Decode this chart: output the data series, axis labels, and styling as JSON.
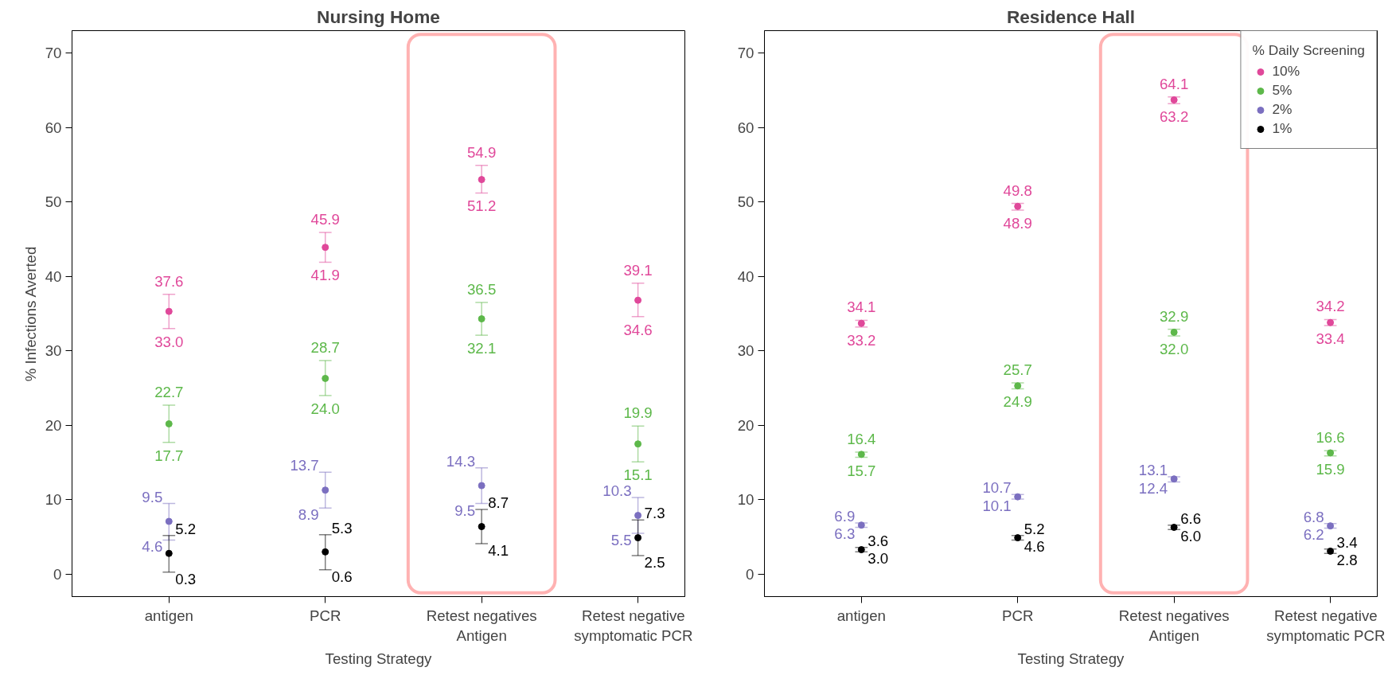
{
  "chart_data": [
    {
      "type": "scatter",
      "title": "Nursing Home",
      "xlabel": "Testing Strategy",
      "ylabel": "% Infections Averted",
      "categories": [
        "antigen",
        "PCR",
        "Retest negatives\nAntigen",
        "Retest negative\nsymptomatic PCR"
      ],
      "ylim": [
        -3,
        73
      ],
      "yticks": [
        0,
        10,
        20,
        30,
        40,
        50,
        60,
        70
      ],
      "grid": false,
      "legend": false,
      "marker": "circle",
      "series": [
        {
          "color": "#e0489a",
          "values": [
            35.3,
            43.9,
            53.0,
            36.8
          ],
          "errors": [
            [
              33.0,
              37.6
            ],
            [
              41.9,
              45.9
            ],
            [
              51.2,
              54.9
            ],
            [
              34.6,
              39.1
            ]
          ]
        },
        {
          "color": "#5db84a",
          "values": [
            20.2,
            26.3,
            34.3,
            17.5
          ],
          "errors": [
            [
              17.7,
              22.7
            ],
            [
              24.0,
              28.7
            ],
            [
              32.1,
              36.5
            ],
            [
              15.1,
              19.9
            ]
          ]
        },
        {
          "color": "#7b6fc0",
          "values": [
            7.1,
            11.3,
            11.9,
            7.9
          ],
          "errors": [
            [
              4.6,
              9.5
            ],
            [
              8.9,
              13.7
            ],
            [
              9.5,
              14.3
            ],
            [
              5.5,
              10.3
            ]
          ]
        },
        {
          "color": "#000000",
          "values": [
            2.8,
            3.0,
            6.4,
            4.9
          ],
          "errors": [
            [
              0.3,
              5.2
            ],
            [
              0.6,
              5.3
            ],
            [
              4.1,
              8.7
            ],
            [
              2.5,
              7.3
            ]
          ]
        }
      ],
      "annotations": [
        {
          "text": "37.6",
          "x": "antigen",
          "y": 37.6
        },
        {
          "text": "33.0",
          "x": "antigen",
          "y": 33.0
        },
        {
          "text": "45.9",
          "x": "PCR",
          "y": 45.9
        },
        {
          "text": "41.9",
          "x": "PCR",
          "y": 41.9
        },
        {
          "text": "54.9",
          "x": "Retest negatives\nAntigen",
          "y": 54.9
        },
        {
          "text": "51.2",
          "x": "Retest negatives\nAntigen",
          "y": 51.2
        },
        {
          "text": "39.1",
          "x": "Retest negative\nsymptomatic PCR",
          "y": 39.1
        },
        {
          "text": "34.6",
          "x": "Retest negative\nsymptomatic PCR",
          "y": 34.6
        },
        {
          "text": "22.7",
          "x": "antigen",
          "y": 22.7
        },
        {
          "text": "17.7",
          "x": "antigen",
          "y": 17.7
        },
        {
          "text": "28.7",
          "x": "PCR",
          "y": 28.7
        },
        {
          "text": "24.0",
          "x": "PCR",
          "y": 24.0
        },
        {
          "text": "36.5",
          "x": "Retest negatives\nAntigen",
          "y": 36.5
        },
        {
          "text": "32.1",
          "x": "Retest negatives\nAntigen",
          "y": 32.1
        },
        {
          "text": "19.9",
          "x": "Retest negative\nsymptomatic PCR",
          "y": 19.9
        },
        {
          "text": "15.1",
          "x": "Retest negative\nsymptomatic PCR",
          "y": 15.1
        },
        {
          "text": "9.5",
          "x": "antigen",
          "y": 9.5
        },
        {
          "text": "4.6",
          "x": "antigen",
          "y": 4.6
        },
        {
          "text": "13.7",
          "x": "PCR",
          "y": 13.7
        },
        {
          "text": "8.9",
          "x": "PCR",
          "y": 8.9
        },
        {
          "text": "14.3",
          "x": "Retest negatives\nAntigen",
          "y": 14.3
        },
        {
          "text": "9.5",
          "x": "Retest negatives\nAntigen",
          "y": 9.5
        },
        {
          "text": "10.3",
          "x": "Retest negative\nsymptomatic PCR",
          "y": 10.3
        },
        {
          "text": "5.5",
          "x": "Retest negative\nsymptomatic PCR",
          "y": 5.5
        },
        {
          "text": "5.2",
          "x": "antigen",
          "y": 5.2
        },
        {
          "text": "0.3",
          "x": "antigen",
          "y": 0.3
        },
        {
          "text": "5.3",
          "x": "PCR",
          "y": 5.3
        },
        {
          "text": "0.6",
          "x": "PCR",
          "y": 0.6
        },
        {
          "text": "8.7",
          "x": "Retest negatives\nAntigen",
          "y": 8.7
        },
        {
          "text": "4.1",
          "x": "Retest negatives\nAntigen",
          "y": 4.1
        },
        {
          "text": "7.3",
          "x": "Retest negative\nsymptomatic PCR",
          "y": 7.3
        },
        {
          "text": "2.5",
          "x": "Retest negative\nsymptomatic PCR",
          "y": 2.5
        }
      ]
    },
    {
      "type": "scatter",
      "title": "Residence Hall",
      "xlabel": "Testing Strategy",
      "legend_title": "% Daily Screening",
      "categories": [
        "antigen",
        "PCR",
        "Retest negatives\nAntigen",
        "Retest negative\nsymptomatic PCR"
      ],
      "ylim": [
        -3,
        73
      ],
      "yticks": [
        0,
        10,
        20,
        30,
        40,
        50,
        60,
        70
      ],
      "grid": false,
      "legend": "top right",
      "marker": "circle",
      "series": [
        {
          "name": "10%",
          "color": "#e0489a",
          "values": [
            33.7,
            49.4,
            63.7,
            33.8
          ],
          "errors": [
            [
              33.2,
              34.1
            ],
            [
              48.9,
              49.8
            ],
            [
              63.2,
              64.1
            ],
            [
              33.4,
              34.2
            ]
          ]
        },
        {
          "name": "5%",
          "color": "#5db84a",
          "values": [
            16.1,
            25.3,
            32.5,
            16.3
          ],
          "errors": [
            [
              15.7,
              16.4
            ],
            [
              24.9,
              25.7
            ],
            [
              32.0,
              32.9
            ],
            [
              15.9,
              16.6
            ]
          ]
        },
        {
          "name": "2%",
          "color": "#7b6fc0",
          "values": [
            6.6,
            10.4,
            12.8,
            6.5
          ],
          "errors": [
            [
              6.3,
              6.9
            ],
            [
              10.1,
              10.7
            ],
            [
              12.4,
              13.1
            ],
            [
              6.2,
              6.8
            ]
          ]
        },
        {
          "name": "1%",
          "color": "#000000",
          "values": [
            3.3,
            4.9,
            6.3,
            3.1
          ],
          "errors": [
            [
              3.0,
              3.6
            ],
            [
              4.6,
              5.2
            ],
            [
              6.0,
              6.6
            ],
            [
              2.8,
              3.4
            ]
          ]
        }
      ],
      "annotations": [
        {
          "text": "34.1",
          "x": "antigen",
          "y": 34.1
        },
        {
          "text": "33.2",
          "x": "antigen",
          "y": 33.2
        },
        {
          "text": "49.8",
          "x": "PCR",
          "y": 49.8
        },
        {
          "text": "48.9",
          "x": "PCR",
          "y": 48.9
        },
        {
          "text": "64.1",
          "x": "Retest negatives\nAntigen",
          "y": 64.1
        },
        {
          "text": "63.2",
          "x": "Retest negatives\nAntigen",
          "y": 63.2
        },
        {
          "text": "34.2",
          "x": "Retest negative\nsymptomatic PCR",
          "y": 34.2
        },
        {
          "text": "33.4",
          "x": "Retest negative\nsymptomatic PCR",
          "y": 33.4
        },
        {
          "text": "16.4",
          "x": "antigen",
          "y": 16.4
        },
        {
          "text": "15.7",
          "x": "antigen",
          "y": 15.7
        },
        {
          "text": "25.7",
          "x": "PCR",
          "y": 25.7
        },
        {
          "text": "24.9",
          "x": "PCR",
          "y": 24.9
        },
        {
          "text": "32.9",
          "x": "Retest negatives\nAntigen",
          "y": 32.9
        },
        {
          "text": "32.0",
          "x": "Retest negatives\nAntigen",
          "y": 32.0
        },
        {
          "text": "16.6",
          "x": "Retest negative\nsymptomatic PCR",
          "y": 16.6
        },
        {
          "text": "15.9",
          "x": "Retest negative\nsymptomatic PCR",
          "y": 15.9
        },
        {
          "text": "6.9",
          "x": "antigen",
          "y": 6.9
        },
        {
          "text": "6.3",
          "x": "antigen",
          "y": 6.3
        },
        {
          "text": "10.7",
          "x": "PCR",
          "y": 10.7
        },
        {
          "text": "10.1",
          "x": "PCR",
          "y": 10.1
        },
        {
          "text": "13.1",
          "x": "Retest negatives\nAntigen",
          "y": 13.1
        },
        {
          "text": "12.4",
          "x": "Retest negatives\nAntigen",
          "y": 12.4
        },
        {
          "text": "6.8",
          "x": "Retest negative\nsymptomatic PCR",
          "y": 6.8
        },
        {
          "text": "6.2",
          "x": "Retest negative\nsymptomatic PCR",
          "y": 6.2
        },
        {
          "text": "3.6",
          "x": "antigen",
          "y": 3.6
        },
        {
          "text": "3.0",
          "x": "antigen",
          "y": 3.0
        },
        {
          "text": "5.2",
          "x": "PCR",
          "y": 5.2
        },
        {
          "text": "4.6",
          "x": "PCR",
          "y": 4.6
        },
        {
          "text": "6.6",
          "x": "Retest negatives\nAntigen",
          "y": 6.6
        },
        {
          "text": "6.0",
          "x": "Retest negatives\nAntigen",
          "y": 6.0
        },
        {
          "text": "3.4",
          "x": "Retest negative\nsymptomatic PCR",
          "y": 3.4
        },
        {
          "text": "2.8",
          "x": "Retest negative\nsymptomatic PCR",
          "y": 2.8
        }
      ]
    }
  ]
}
